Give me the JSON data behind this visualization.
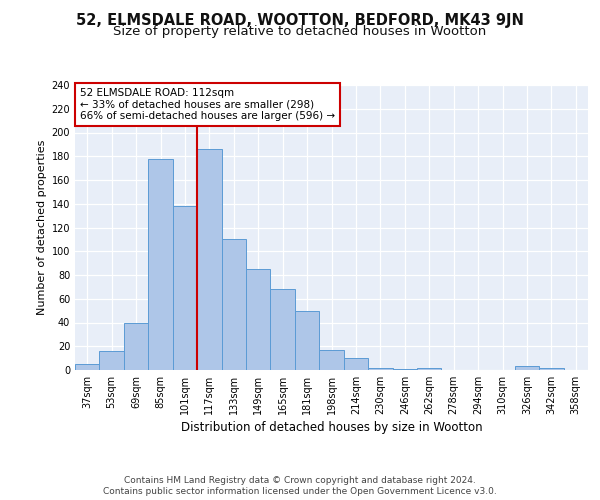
{
  "title": "52, ELMSDALE ROAD, WOOTTON, BEDFORD, MK43 9JN",
  "subtitle": "Size of property relative to detached houses in Wootton",
  "xlabel": "Distribution of detached houses by size in Wootton",
  "ylabel": "Number of detached properties",
  "categories": [
    "37sqm",
    "53sqm",
    "69sqm",
    "85sqm",
    "101sqm",
    "117sqm",
    "133sqm",
    "149sqm",
    "165sqm",
    "181sqm",
    "198sqm",
    "214sqm",
    "230sqm",
    "246sqm",
    "262sqm",
    "278sqm",
    "294sqm",
    "310sqm",
    "326sqm",
    "342sqm",
    "358sqm"
  ],
  "values": [
    5,
    16,
    40,
    178,
    138,
    186,
    110,
    85,
    68,
    50,
    17,
    10,
    2,
    1,
    2,
    0,
    0,
    0,
    3,
    2,
    0
  ],
  "bar_color": "#aec6e8",
  "bar_edge_color": "#5b9bd5",
  "vline_x_index": 4.5,
  "vline_color": "#cc0000",
  "annotation_line1": "52 ELMSDALE ROAD: 112sqm",
  "annotation_line2": "← 33% of detached houses are smaller (298)",
  "annotation_line3": "66% of semi-detached houses are larger (596) →",
  "annotation_box_facecolor": "#ffffff",
  "annotation_box_edgecolor": "#cc0000",
  "ylim_max": 240,
  "yticks": [
    0,
    20,
    40,
    60,
    80,
    100,
    120,
    140,
    160,
    180,
    200,
    220,
    240
  ],
  "footer_line1": "Contains HM Land Registry data © Crown copyright and database right 2024.",
  "footer_line2": "Contains public sector information licensed under the Open Government Licence v3.0.",
  "fig_bg": "#ffffff",
  "plot_bg": "#e8eef8",
  "title_fontsize": 10.5,
  "subtitle_fontsize": 9.5,
  "xlabel_fontsize": 8.5,
  "ylabel_fontsize": 8,
  "tick_fontsize": 7,
  "annotation_fontsize": 7.5,
  "footer_fontsize": 6.5
}
